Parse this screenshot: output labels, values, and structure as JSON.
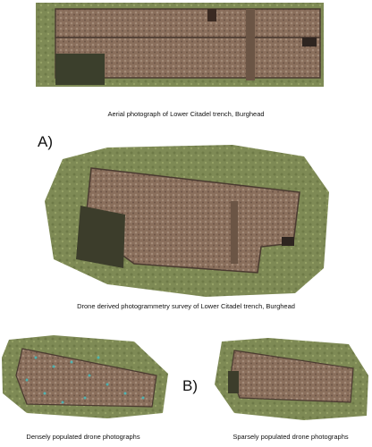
{
  "figure": {
    "top_caption": "Aerial photograph of Lower Citadel trench, Burghead",
    "label_a": "A)",
    "middle_caption": "Drone derived photogrammetry survey of Lower Citadel trench, Burghead",
    "label_b": "B)",
    "bottom_left_caption": "Densely populated drone photographs",
    "bottom_right_caption": "Sparsely populated drone photographs"
  }
}
